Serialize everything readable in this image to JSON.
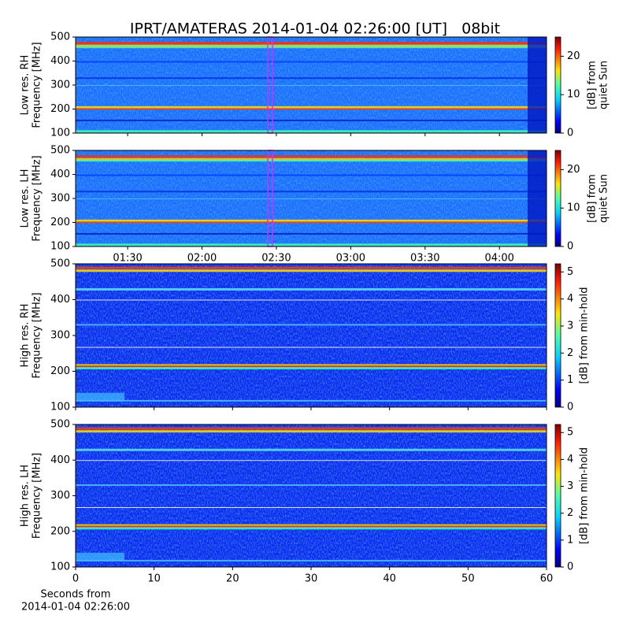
{
  "chart_data": [
    {
      "type": "heatmap",
      "title": "IPRT/AMATERAS 2014-01-04 02:26:00 [UT]   08bit",
      "ylabel": [
        "Low res. RH",
        "Frequency [MHz]"
      ],
      "ylim": [
        100,
        500
      ],
      "yticks": [
        100,
        200,
        300,
        400,
        500
      ],
      "xlim": [
        69,
        259
      ],
      "xticks": [
        {
          "value": 90,
          "label": "01:30"
        },
        {
          "value": 120,
          "label": "02:00"
        },
        {
          "value": 150,
          "label": "02:30"
        },
        {
          "value": 180,
          "label": "03:00"
        },
        {
          "value": 210,
          "label": "03:30"
        },
        {
          "value": 240,
          "label": "04:00"
        }
      ],
      "colorbar": {
        "label": [
          "[dB] from",
          "quiet Sun"
        ],
        "lim": [
          0,
          25
        ],
        "ticks": [
          0,
          10,
          20
        ],
        "colormap": "jet"
      }
    },
    {
      "type": "heatmap",
      "ylabel": [
        "Low res. LH",
        "Frequency [MHz]"
      ],
      "ylim": [
        100,
        500
      ],
      "yticks": [
        100,
        200,
        300,
        400,
        500
      ],
      "xlim": [
        69,
        259
      ],
      "xticks": [
        {
          "value": 90,
          "label": "01:30"
        },
        {
          "value": 120,
          "label": "02:00"
        },
        {
          "value": 150,
          "label": "02:30"
        },
        {
          "value": 180,
          "label": "03:00"
        },
        {
          "value": 210,
          "label": "03:30"
        },
        {
          "value": 240,
          "label": "04:00"
        }
      ],
      "colorbar": {
        "label": [
          "[dB] from",
          "quiet Sun"
        ],
        "lim": [
          0,
          25
        ],
        "ticks": [
          0,
          10,
          20
        ],
        "colormap": "jet"
      }
    },
    {
      "type": "heatmap",
      "ylabel": [
        "High res. RH",
        "Frequency [MHz]"
      ],
      "ylim": [
        100,
        500
      ],
      "yticks": [
        100,
        200,
        300,
        400,
        500
      ],
      "xlim": [
        0,
        60
      ],
      "xticks": [
        0,
        10,
        20,
        30,
        40,
        50,
        60
      ],
      "colorbar": {
        "label": [
          "[dB] from min-hold"
        ],
        "lim": [
          0,
          5.3
        ],
        "ticks": [
          0,
          1,
          2,
          3,
          4,
          5
        ],
        "colormap": "jet"
      }
    },
    {
      "type": "heatmap",
      "ylabel": [
        "High res. LH",
        "Frequency [MHz]"
      ],
      "ylim": [
        100,
        500
      ],
      "yticks": [
        100,
        200,
        300,
        400,
        500
      ],
      "xlim": [
        0,
        60
      ],
      "xticks": [
        0,
        10,
        20,
        30,
        40,
        50,
        60
      ],
      "xlabel": [
        "Seconds from",
        "2014-01-04 02:26:00"
      ],
      "colorbar": {
        "label": [
          "[dB] from min-hold"
        ],
        "lim": [
          0,
          5.3
        ],
        "ticks": [
          0,
          1,
          2,
          3,
          4,
          5
        ],
        "colormap": "jet"
      }
    }
  ]
}
